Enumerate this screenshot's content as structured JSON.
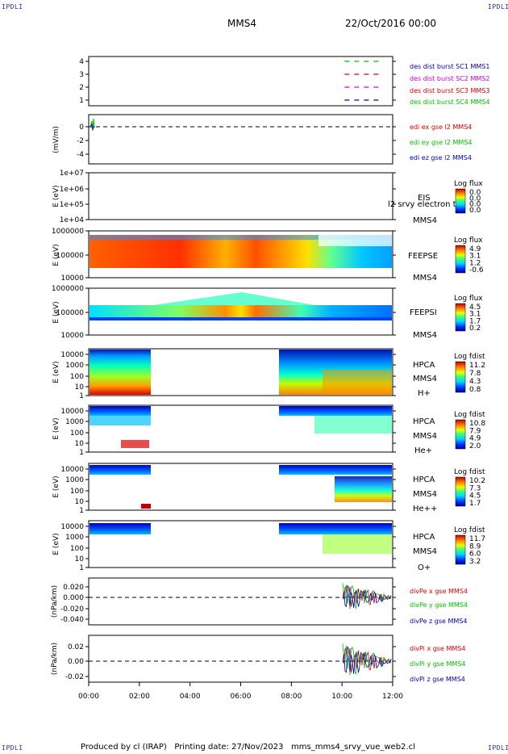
{
  "corners": {
    "label": "IPDLI"
  },
  "header": {
    "spacecraft": "MMS4",
    "date": "22/Oct/2016 00:00"
  },
  "footer": {
    "produced": "Produced by cl (IRAP)",
    "printing": "Printing date: 27/Nov/2023",
    "file": "mms_mms4_srvy_vue_web2.cl"
  },
  "colors": {
    "red": "#e00000",
    "green": "#00c000",
    "blue": "#0000c0",
    "magenta": "#d000d0"
  },
  "chart_data": {
    "type": "multi-panel",
    "x_axis": {
      "ticks": [
        "00:00",
        "02:00",
        "04:00",
        "06:00",
        "08:00",
        "10:00",
        "12:00"
      ],
      "range_hours": [
        0,
        12
      ]
    },
    "panels": [
      {
        "id": "burst",
        "ticks": [
          "4",
          "3",
          "2",
          "1"
        ],
        "ylabel": "",
        "legend": [
          {
            "text": "des dist burst SC1 MMS1",
            "color": "#0000c0"
          },
          {
            "text": "des dist burst SC2 MMS2",
            "color": "#d000d0"
          },
          {
            "text": "des dist burst SC3 MMS3",
            "color": "#e00000"
          },
          {
            "text": "des dist burst SC4 MMS4",
            "color": "#00c000"
          }
        ],
        "series": [
          {
            "level": 4,
            "color": "#00c000",
            "x_start": 10.1,
            "x_end": 11.6
          },
          {
            "level": 3,
            "color": "#e00000",
            "x_start": 10.1,
            "x_end": 11.6
          },
          {
            "level": 2,
            "color": "#d000d0",
            "x_start": 10.1,
            "x_end": 11.6
          },
          {
            "level": 1,
            "color": "#0000c0",
            "x_start": 10.1,
            "x_end": 11.6
          }
        ]
      },
      {
        "id": "edi",
        "ticks": [
          "0",
          "-2",
          "-4"
        ],
        "ylabel": "(mV/m)",
        "legend": [
          {
            "text": "edi ex gse l2 MMS4",
            "color": "#e00000"
          },
          {
            "text": "edi ey gse l2 MMS4",
            "color": "#00c000"
          },
          {
            "text": "edi ez gse l2 MMS4",
            "color": "#0000c0"
          }
        ]
      },
      {
        "id": "eis",
        "ticks": [
          "1e+07",
          "1e+06",
          "1e+05",
          "1e+04"
        ],
        "ylabel": "E (eV)",
        "labels": [
          "EIS",
          "MMS4"
        ],
        "overlay": "l2 srvy electron to",
        "cbar_title": "Log flux",
        "cbar_ticks": [
          "0.0",
          "0.0",
          "0.0",
          "0.0"
        ]
      },
      {
        "id": "feepse",
        "ticks": [
          "1000000",
          "100000",
          "10000"
        ],
        "ylabel": "E (eV)",
        "labels": [
          "FEEPSE",
          "MMS4"
        ],
        "cbar_title": "Log flux",
        "cbar_ticks": [
          "4.9",
          "3.1",
          "1.2",
          "-0.6"
        ]
      },
      {
        "id": "feepsi",
        "ticks": [
          "1000000",
          "100000",
          "10000"
        ],
        "ylabel": "E (eV)",
        "labels": [
          "FEEPSI",
          "MMS4"
        ],
        "cbar_title": "Log flux",
        "cbar_ticks": [
          "4.5",
          "3.1",
          "1.7",
          "0.2"
        ]
      },
      {
        "id": "hpca_h",
        "ticks": [
          "10000",
          "1000",
          "100",
          "10",
          "1"
        ],
        "ylabel": "E (eV)",
        "labels": [
          "HPCA",
          "MMS4",
          "H+"
        ],
        "cbar_title": "Log fdist",
        "cbar_ticks": [
          "11.2",
          "7.8",
          "4.3",
          "0.8"
        ]
      },
      {
        "id": "hpca_he",
        "ticks": [
          "10000",
          "1000",
          "100",
          "10",
          "1"
        ],
        "ylabel": "E (eV)",
        "labels": [
          "HPCA",
          "MMS4",
          "He+"
        ],
        "cbar_title": "Log fdist",
        "cbar_ticks": [
          "10.8",
          "7.9",
          "4.9",
          "2.0"
        ]
      },
      {
        "id": "hpca_hepp",
        "ticks": [
          "10000",
          "1000",
          "100",
          "10",
          "1"
        ],
        "ylabel": "E (eV)",
        "labels": [
          "HPCA",
          "MMS4",
          "He++"
        ],
        "cbar_title": "Log fdist",
        "cbar_ticks": [
          "10.2",
          "7.3",
          "4.5",
          "1.7"
        ]
      },
      {
        "id": "hpca_o",
        "ticks": [
          "10000",
          "1000",
          "100",
          "10",
          "1"
        ],
        "ylabel": "E (eV)",
        "labels": [
          "HPCA",
          "MMS4",
          "O+"
        ],
        "cbar_title": "Log fdist",
        "cbar_ticks": [
          "11.7",
          "8.9",
          "6.0",
          "3.2"
        ]
      },
      {
        "id": "divpe",
        "ticks": [
          "0.020",
          "0.000",
          "-0.020",
          "-0.040"
        ],
        "ylabel": "(nPa/km)",
        "legend": [
          {
            "text": "divPe x gse MMS4",
            "color": "#e00000"
          },
          {
            "text": "divPe y gse MMS4",
            "color": "#00c000"
          },
          {
            "text": "divPe z gse MMS4",
            "color": "#0000c0"
          }
        ]
      },
      {
        "id": "divpi",
        "ticks": [
          "0.02",
          "0.00",
          "-0.02"
        ],
        "ylabel": "(nPa/km)",
        "legend": [
          {
            "text": "divPi x gse MMS4",
            "color": "#e00000"
          },
          {
            "text": "divPi y gse MMS4",
            "color": "#00c000"
          },
          {
            "text": "divPi z gse MMS4",
            "color": "#0000c0"
          }
        ]
      }
    ]
  }
}
